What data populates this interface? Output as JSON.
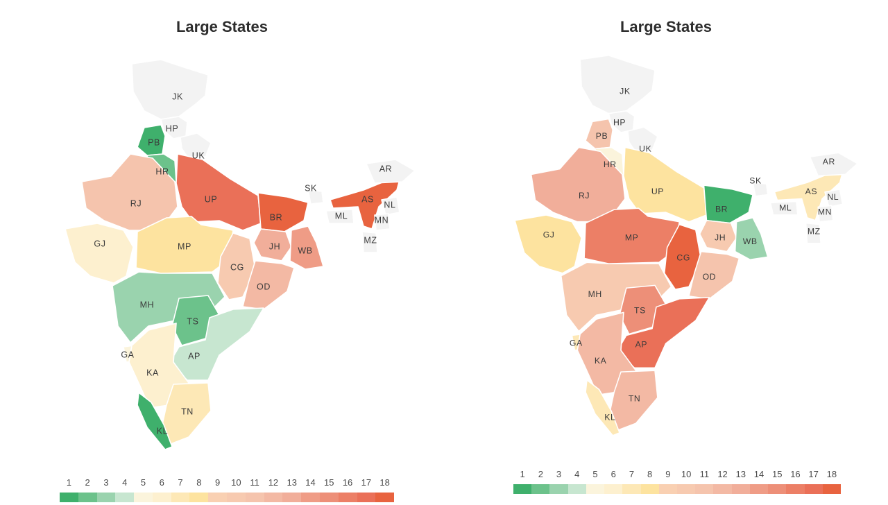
{
  "charts": [
    {
      "title": "Large States",
      "ranks": {
        "PB": 1,
        "HR": 2,
        "RJ": 11,
        "UP": 17,
        "BR": 18,
        "AS": 18,
        "GJ": 6,
        "MP": 8,
        "CG": 10,
        "JH": 13,
        "WB": 14,
        "OD": 12,
        "MH": 3,
        "TS": 2,
        "AP": 4,
        "GA": 5,
        "KA": 6,
        "TN": 7,
        "KL": 1
      }
    },
    {
      "title": "Large States",
      "ranks": {
        "PB": 11,
        "HR": 5,
        "RJ": 13,
        "UP": 8,
        "BR": 1,
        "AS": 7,
        "GJ": 8,
        "MP": 16,
        "CG": 18,
        "JH": 10,
        "WB": 3,
        "OD": 11,
        "MH": 10,
        "TS": 15,
        "AP": 17,
        "GA": 7,
        "KA": 12,
        "TN": 12,
        "KL": 7
      }
    }
  ],
  "grey_regions": [
    "JK",
    "HP",
    "UK",
    "SK",
    "AR",
    "NL",
    "MN",
    "MZ",
    "ML"
  ],
  "grey_color": "#f3f3f3",
  "legend": {
    "values": [
      "1",
      "2",
      "3",
      "4",
      "5",
      "6",
      "7",
      "8",
      "9",
      "10",
      "11",
      "12",
      "13",
      "14",
      "15",
      "16",
      "17",
      "18"
    ],
    "colors": [
      "#3fb06c",
      "#6cc28b",
      "#9ad3ae",
      "#c7e6d0",
      "#fbf4dc",
      "#fdf0cf",
      "#fde8b6",
      "#fde39f",
      "#f9d0b2",
      "#f7cab0",
      "#f5c4ad",
      "#f3b9a4",
      "#f1ae9a",
      "#ef9c86",
      "#ed8f78",
      "#ec7f66",
      "#ea7058",
      "#e8633f"
    ]
  }
}
